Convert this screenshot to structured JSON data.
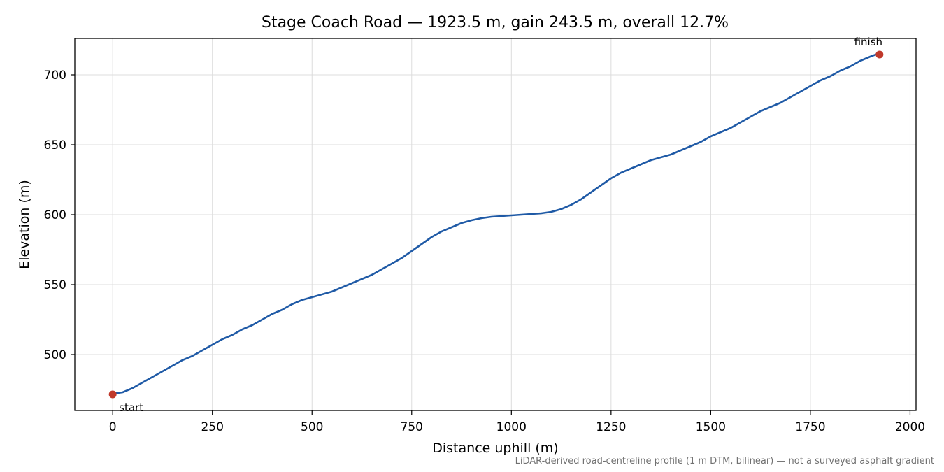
{
  "chart_data": {
    "type": "line",
    "title": "Stage Coach Road — 1923.5 m, gain 243.5 m, overall 12.7%",
    "xlabel": "Distance uphill (m)",
    "ylabel": "Elevation (m)",
    "xlim": [
      -95,
      2015
    ],
    "ylim": [
      460,
      726
    ],
    "xticks": [
      0,
      250,
      500,
      750,
      1000,
      1250,
      1500,
      1750,
      2000
    ],
    "yticks": [
      500,
      550,
      600,
      650,
      700
    ],
    "grid": true,
    "series": [
      {
        "color": "#1f5aa6",
        "x": [
          0,
          25,
          50,
          75,
          100,
          125,
          150,
          175,
          200,
          225,
          250,
          275,
          300,
          325,
          350,
          375,
          400,
          425,
          450,
          475,
          500,
          525,
          550,
          575,
          600,
          625,
          650,
          675,
          700,
          725,
          750,
          775,
          800,
          825,
          850,
          875,
          900,
          925,
          950,
          975,
          1000,
          1025,
          1050,
          1075,
          1100,
          1125,
          1150,
          1175,
          1200,
          1225,
          1250,
          1275,
          1300,
          1325,
          1350,
          1375,
          1400,
          1425,
          1450,
          1475,
          1500,
          1525,
          1550,
          1575,
          1600,
          1625,
          1650,
          1675,
          1700,
          1725,
          1750,
          1775,
          1800,
          1825,
          1850,
          1875,
          1900,
          1923.5
        ],
        "y": [
          472,
          473,
          476,
          480,
          484,
          488,
          492,
          496,
          499,
          503,
          507,
          511,
          514,
          518,
          521,
          525,
          529,
          532,
          536,
          539,
          541,
          543,
          545,
          548,
          551,
          554,
          557,
          561,
          565,
          569,
          574,
          579,
          584,
          588,
          591,
          594,
          596,
          597.5,
          598.5,
          599,
          599.5,
          600,
          600.5,
          601,
          602,
          604,
          607,
          611,
          616,
          621,
          626,
          630,
          633,
          636,
          639,
          641,
          643,
          646,
          649,
          652,
          656,
          659,
          662,
          666,
          670,
          674,
          677,
          680,
          684,
          688,
          692,
          696,
          699,
          703,
          706,
          710,
          713,
          715.5
        ]
      }
    ],
    "markers": [
      {
        "x": 0,
        "y": 471.5,
        "label": "start",
        "color": "#c0392b"
      },
      {
        "x": 1923.5,
        "y": 714.5,
        "label": "finish",
        "color": "#c0392b"
      }
    ],
    "footnote": "LiDAR-derived road-centreline profile (1 m DTM, bilinear) — not a surveyed asphalt gradient"
  }
}
